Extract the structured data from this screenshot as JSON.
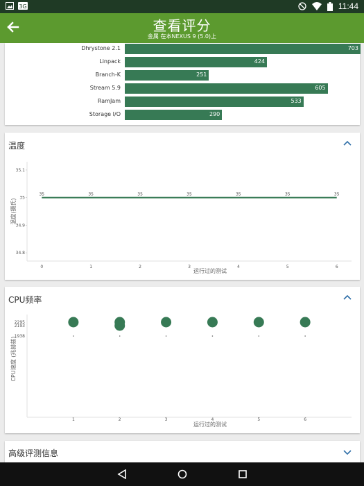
{
  "status_bar": {
    "time": "11:44",
    "left_icons": [
      "image-icon",
      "sim-card-icon"
    ],
    "right_icons": [
      "no-disturb-icon",
      "wifi-icon",
      "battery-icon"
    ]
  },
  "app_bar": {
    "title": "查看评分",
    "subtitle": "金属 在本NEXUS 9 (5.0)上",
    "accent": "#5c9a2f"
  },
  "benchmarks": {
    "max_value": 703,
    "items": [
      {
        "label": "Dhrystone 2.1",
        "value": "703"
      },
      {
        "label": "Linpack",
        "value": "424"
      },
      {
        "label": "Branch-K",
        "value": "251"
      },
      {
        "label": "Stream 5.9",
        "value": "605"
      },
      {
        "label": "RamJam",
        "value": "533"
      },
      {
        "label": "Storage I/O",
        "value": "290"
      }
    ]
  },
  "temperature": {
    "header": "温度",
    "chart_data": {
      "type": "line",
      "xlabel": "运行过的测试",
      "ylabel": "温度(摄氏)",
      "x": [
        0,
        1,
        2,
        3,
        4,
        5,
        6
      ],
      "y": [
        35,
        35,
        35,
        35,
        35,
        35,
        35
      ],
      "data_labels": [
        "35",
        "35",
        "35",
        "35",
        "35",
        "35",
        "35"
      ],
      "xticks": [
        "0",
        "1",
        "2",
        "3",
        "4",
        "5",
        "6"
      ],
      "yticks": [
        "35.1",
        "35",
        "34.9",
        "34.8"
      ],
      "ytick_values": [
        35.1,
        35.0,
        34.9,
        34.8
      ],
      "ylim": [
        34.77,
        35.13
      ],
      "xlim": [
        -0.3,
        6.3
      ],
      "line_color": "#377a55"
    }
  },
  "cpu": {
    "header": "CPU频率",
    "chart_data": {
      "type": "scatter",
      "xlabel": "运行过的测试",
      "ylabel": "CPU速度 (兆赫兹)",
      "xticks": [
        "1",
        "2",
        "3",
        "4",
        "5",
        "6"
      ],
      "yticks": [
        "2295",
        "2193",
        "1938"
      ],
      "ytick_values": [
        2295,
        2193,
        1938
      ],
      "ylim": [
        0,
        2400
      ],
      "xlim": [
        0,
        7
      ],
      "points": [
        {
          "x": 1,
          "y": 2295
        },
        {
          "x": 2,
          "y": 2295
        },
        {
          "x": 2,
          "y": 2193
        },
        {
          "x": 3,
          "y": 2295
        },
        {
          "x": 4,
          "y": 2295
        },
        {
          "x": 5,
          "y": 2295
        },
        {
          "x": 6,
          "y": 2295
        }
      ],
      "minor_points": [
        {
          "x": 1,
          "y": 1938
        },
        {
          "x": 2,
          "y": 1938
        },
        {
          "x": 3,
          "y": 1938
        },
        {
          "x": 4,
          "y": 1938
        },
        {
          "x": 5,
          "y": 1938
        },
        {
          "x": 6,
          "y": 1938
        }
      ],
      "point_color": "#377a55"
    }
  },
  "advanced": {
    "header": "高级评测信息"
  },
  "nav_bar": {
    "icons": [
      "back-triangle-icon",
      "home-circle-icon",
      "recents-square-icon"
    ]
  }
}
